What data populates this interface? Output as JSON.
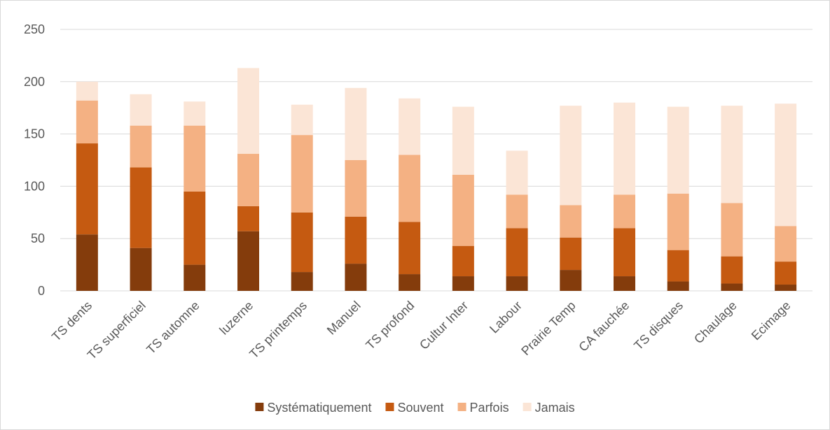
{
  "chart_data": {
    "type": "bar",
    "stacked": true,
    "title": "",
    "xlabel": "",
    "ylabel": "",
    "ylim": [
      0,
      250
    ],
    "yticks": [
      0,
      50,
      100,
      150,
      200,
      250
    ],
    "grid": true,
    "legend_position": "bottom",
    "categories": [
      "TS dents",
      "TS superficiel",
      "TS automne",
      "luzerne",
      "TS printemps",
      "Manuel",
      "TS profond",
      "Cultur Inter",
      "Labour",
      "Prairie Temp",
      "CA fauchée",
      "TS disques",
      "Chaulage",
      "Ecimage"
    ],
    "series": [
      {
        "name": "Systématiquement",
        "color": "#843c0c",
        "values": [
          54,
          41,
          25,
          57,
          18,
          26,
          16,
          14,
          14,
          20,
          14,
          9,
          7,
          6
        ]
      },
      {
        "name": "Souvent",
        "color": "#c55a11",
        "values": [
          87,
          77,
          70,
          24,
          57,
          45,
          50,
          29,
          46,
          31,
          46,
          30,
          26,
          22
        ]
      },
      {
        "name": "Parfois",
        "color": "#f4b183",
        "values": [
          41,
          40,
          63,
          50,
          74,
          54,
          64,
          68,
          32,
          31,
          32,
          54,
          51,
          34
        ]
      },
      {
        "name": "Jamais",
        "color": "#fbe5d6",
        "values": [
          18,
          30,
          23,
          82,
          29,
          69,
          54,
          65,
          42,
          95,
          88,
          83,
          93,
          117
        ]
      }
    ]
  }
}
